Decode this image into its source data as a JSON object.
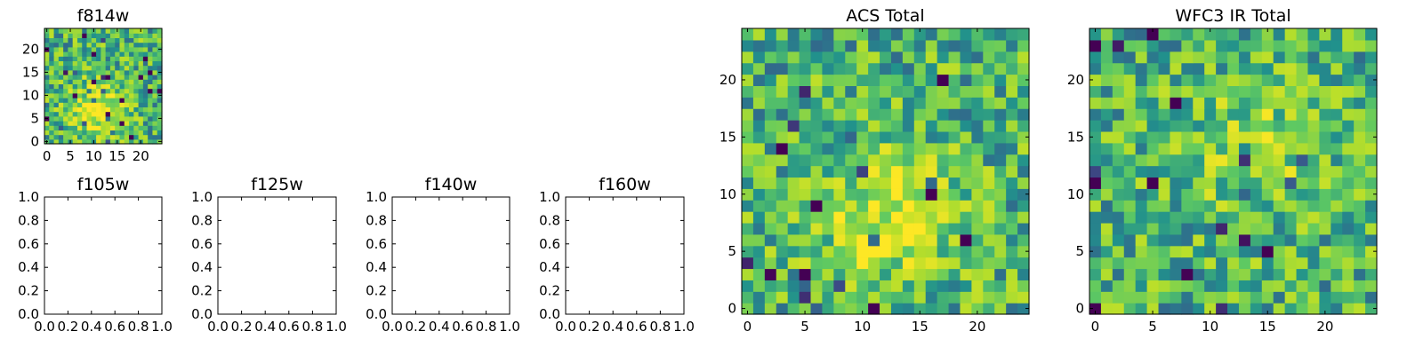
{
  "figure": {
    "palette": [
      "#440154",
      "#3b528b",
      "#21918c",
      "#5ec962",
      "#b5de2b",
      "#fde725"
    ]
  },
  "chart_data": [
    {
      "type": "heatmap",
      "title": "f814w",
      "grid": false,
      "xlim": [
        -0.5,
        24.5
      ],
      "ylim": [
        -0.5,
        24.5
      ],
      "xticks": [
        0,
        5,
        10,
        15,
        20
      ],
      "yticks": [
        0,
        5,
        10,
        15,
        20
      ],
      "size": 25,
      "seed": 814,
      "center": [
        11,
        7
      ],
      "peak": 0.35
    },
    {
      "type": "heatmap",
      "title": "f105w",
      "empty": true,
      "xlim": [
        0,
        1
      ],
      "ylim": [
        0,
        1
      ],
      "xticks": [
        0.0,
        0.2,
        0.4,
        0.6,
        0.8,
        1.0
      ],
      "yticks": [
        0.0,
        0.2,
        0.4,
        0.6,
        0.8,
        1.0
      ]
    },
    {
      "type": "heatmap",
      "title": "f125w",
      "empty": true,
      "xlim": [
        0,
        1
      ],
      "ylim": [
        0,
        1
      ],
      "xticks": [
        0.0,
        0.2,
        0.4,
        0.6,
        0.8,
        1.0
      ],
      "yticks": [
        0.0,
        0.2,
        0.4,
        0.6,
        0.8,
        1.0
      ]
    },
    {
      "type": "heatmap",
      "title": "f140w",
      "empty": true,
      "xlim": [
        0,
        1
      ],
      "ylim": [
        0,
        1
      ],
      "xticks": [
        0.0,
        0.2,
        0.4,
        0.6,
        0.8,
        1.0
      ],
      "yticks": [
        0.0,
        0.2,
        0.4,
        0.6,
        0.8,
        1.0
      ]
    },
    {
      "type": "heatmap",
      "title": "f160w",
      "empty": true,
      "xlim": [
        0,
        1
      ],
      "ylim": [
        0,
        1
      ],
      "xticks": [
        0.0,
        0.2,
        0.4,
        0.6,
        0.8,
        1.0
      ],
      "yticks": [
        0.0,
        0.2,
        0.4,
        0.6,
        0.8,
        1.0
      ]
    },
    {
      "type": "heatmap",
      "title": "ACS Total",
      "grid": false,
      "xlim": [
        -0.5,
        24.5
      ],
      "ylim": [
        -0.5,
        24.5
      ],
      "xticks": [
        0,
        5,
        10,
        15,
        20
      ],
      "yticks": [
        0,
        5,
        10,
        15,
        20
      ],
      "size": 25,
      "seed": 1201,
      "center": [
        12,
        8
      ],
      "peak": 0.3
    },
    {
      "type": "heatmap",
      "title": "WFC3 IR Total",
      "grid": false,
      "xlim": [
        -0.5,
        24.5
      ],
      "ylim": [
        -0.5,
        24.5
      ],
      "xticks": [
        0,
        5,
        10,
        15,
        20
      ],
      "yticks": [
        0,
        5,
        10,
        15,
        20
      ],
      "size": 25,
      "seed": 3007,
      "center": [
        14,
        14
      ],
      "peak": 0.2
    }
  ]
}
